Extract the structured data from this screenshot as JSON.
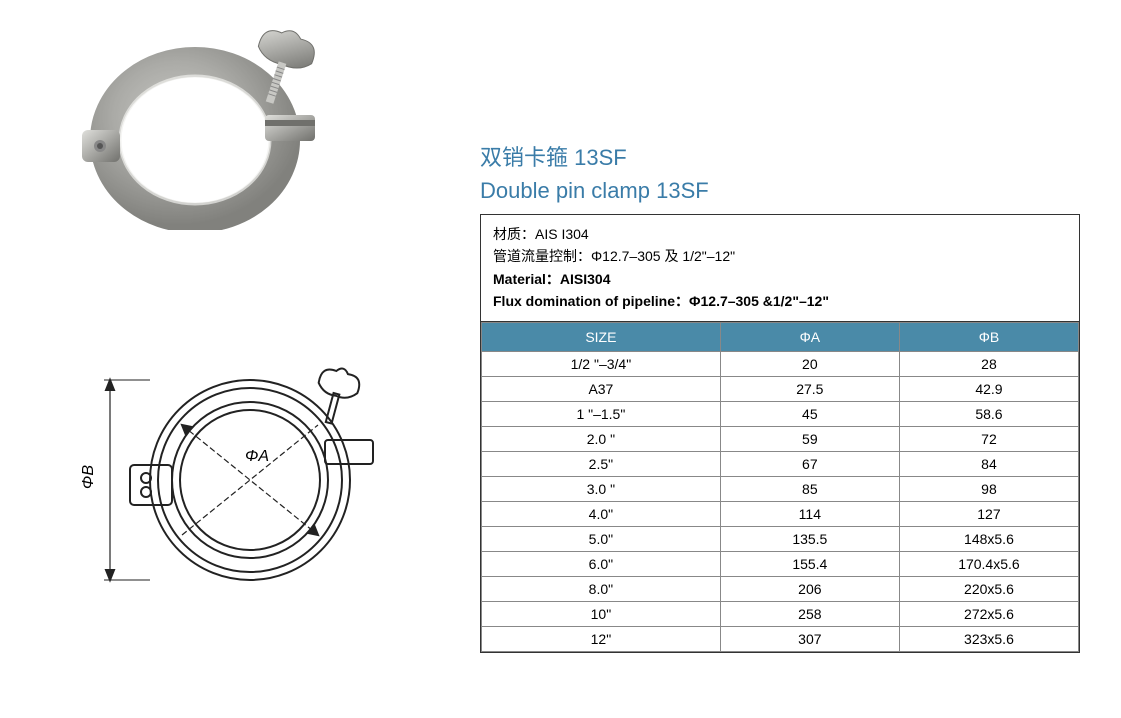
{
  "title": {
    "cn": "双销卡箍 13SF",
    "en": "Double pin clamp 13SF",
    "color": "#3a7ca8"
  },
  "spec": {
    "material_cn_label": "材质：",
    "material_cn_value": "AIS I304",
    "flux_cn_label": "管道流量控制：",
    "flux_cn_value": "Φ12.7–305 及 1/2\"–12\"",
    "material_en_label": "Material：",
    "material_en_value": "AISI304",
    "flux_en_label": "Flux domination of pipeline：",
    "flux_en_value": "Φ12.7–305 &1/2\"–12\""
  },
  "table": {
    "header_bg": "#4a8aa8",
    "columns": [
      "SIZE",
      "ΦA",
      "ΦB"
    ],
    "col_widths": [
      "40%",
      "30%",
      "30%"
    ],
    "rows": [
      [
        "1/2 \"–3/4\"",
        "20",
        "28"
      ],
      [
        "A37",
        "27.5",
        "42.9"
      ],
      [
        "1 \"–1.5\"",
        "45",
        "58.6"
      ],
      [
        "2.0 \"",
        "59",
        "72"
      ],
      [
        "2.5\"",
        "67",
        "84"
      ],
      [
        "3.0 \"",
        "85",
        "98"
      ],
      [
        "4.0\"",
        "114",
        "127"
      ],
      [
        "5.0\"",
        "135.5",
        "148x5.6"
      ],
      [
        "6.0\"",
        "155.4",
        "170.4x5.6"
      ],
      [
        "8.0\"",
        "206",
        "220x5.6"
      ],
      [
        "10\"",
        "258",
        "272x5.6"
      ],
      [
        "12\"",
        "307",
        "323x5.6"
      ]
    ]
  },
  "drawing": {
    "label_a": "ΦA",
    "label_b": "ΦB",
    "stroke": "#222222"
  },
  "photo": {
    "metal_light": "#d8d8d6",
    "metal_mid": "#b8b8b4",
    "metal_dark": "#8a8a86",
    "metal_shadow": "#5a5a56"
  }
}
